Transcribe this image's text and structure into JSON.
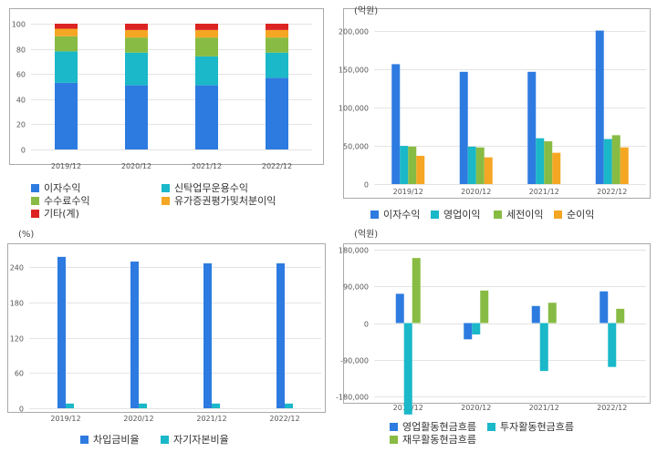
{
  "colors": {
    "blue": "#2d7be0",
    "teal": "#1ab8c8",
    "green": "#88bb44",
    "orange": "#f5a623",
    "red": "#dd2222",
    "grid": "#e4e4e4",
    "axis": "#aaaaaa"
  },
  "chart_data": [
    {
      "id": "revenue-mix",
      "type": "bar",
      "stacked": true,
      "unit_label": "",
      "categories": [
        "2019/12",
        "2020/12",
        "2021/12",
        "2022/12"
      ],
      "y_ticks": [
        "0",
        "20",
        "40",
        "60",
        "80",
        "100"
      ],
      "ylim": [
        0,
        100
      ],
      "series": [
        {
          "name": "이자수익",
          "color": "#2d7be0",
          "values": [
            53,
            51,
            51,
            57
          ]
        },
        {
          "name": "신탁업무운용수익",
          "color": "#1ab8c8",
          "values": [
            25,
            26,
            23,
            20
          ]
        },
        {
          "name": "수수료수익",
          "color": "#88bb44",
          "values": [
            12,
            12,
            15,
            12
          ]
        },
        {
          "name": "유가증권평가및처분이익",
          "color": "#f5a623",
          "values": [
            6,
            6,
            6,
            6
          ]
        },
        {
          "name": "기타(계)",
          "color": "#dd2222",
          "values": [
            4,
            5,
            5,
            5
          ]
        }
      ]
    },
    {
      "id": "profit",
      "type": "bar",
      "unit_label": "(억원)",
      "categories": [
        "2019/12",
        "2020/12",
        "2021/12",
        "2022/12"
      ],
      "y_ticks": [
        "0",
        "50,000",
        "100,000",
        "150,000",
        "200,000"
      ],
      "ylim": [
        0,
        210000
      ],
      "series": [
        {
          "name": "이자수익",
          "color": "#2d7be0",
          "values": [
            157000,
            147000,
            147000,
            201000
          ]
        },
        {
          "name": "영업이익",
          "color": "#1ab8c8",
          "values": [
            50000,
            49000,
            60000,
            59000
          ]
        },
        {
          "name": "세전이익",
          "color": "#88bb44",
          "values": [
            49000,
            48000,
            56000,
            64000
          ]
        },
        {
          "name": "순이익",
          "color": "#f5a623",
          "values": [
            37000,
            35000,
            41000,
            48000
          ]
        }
      ]
    },
    {
      "id": "ratios",
      "type": "bar",
      "unit_label": "(%)",
      "categories": [
        "2019/12",
        "2020/12",
        "2021/12",
        "2022/12"
      ],
      "y_ticks": [
        "0",
        "60",
        "120",
        "180",
        "240"
      ],
      "ylim": [
        0,
        264
      ],
      "series": [
        {
          "name": "차입금비율",
          "color": "#2d7be0",
          "values": [
            258,
            250,
            247,
            247
          ]
        },
        {
          "name": "자기자본비율",
          "color": "#1ab8c8",
          "values": [
            8,
            8,
            8,
            8
          ]
        }
      ]
    },
    {
      "id": "cashflow",
      "type": "bar",
      "unit_label": "(억원)",
      "categories": [
        "2019/12",
        "2020/12",
        "2021/12",
        "2022/12"
      ],
      "y_ticks": [
        "-180,000",
        "-90,000",
        "0",
        "90,000",
        "180,000"
      ],
      "ylim": [
        -185000,
        185000
      ],
      "series": [
        {
          "name": "영업활동현금흐름",
          "color": "#2d7be0",
          "values": [
            72000,
            -40000,
            42000,
            78000
          ]
        },
        {
          "name": "투자활동현금흐름",
          "color": "#1ab8c8",
          "values": [
            -225000,
            -28000,
            -118000,
            -108000
          ]
        },
        {
          "name": "재무활동현금흐름",
          "color": "#88bb44",
          "values": [
            160000,
            80000,
            50000,
            35000
          ]
        }
      ]
    }
  ]
}
